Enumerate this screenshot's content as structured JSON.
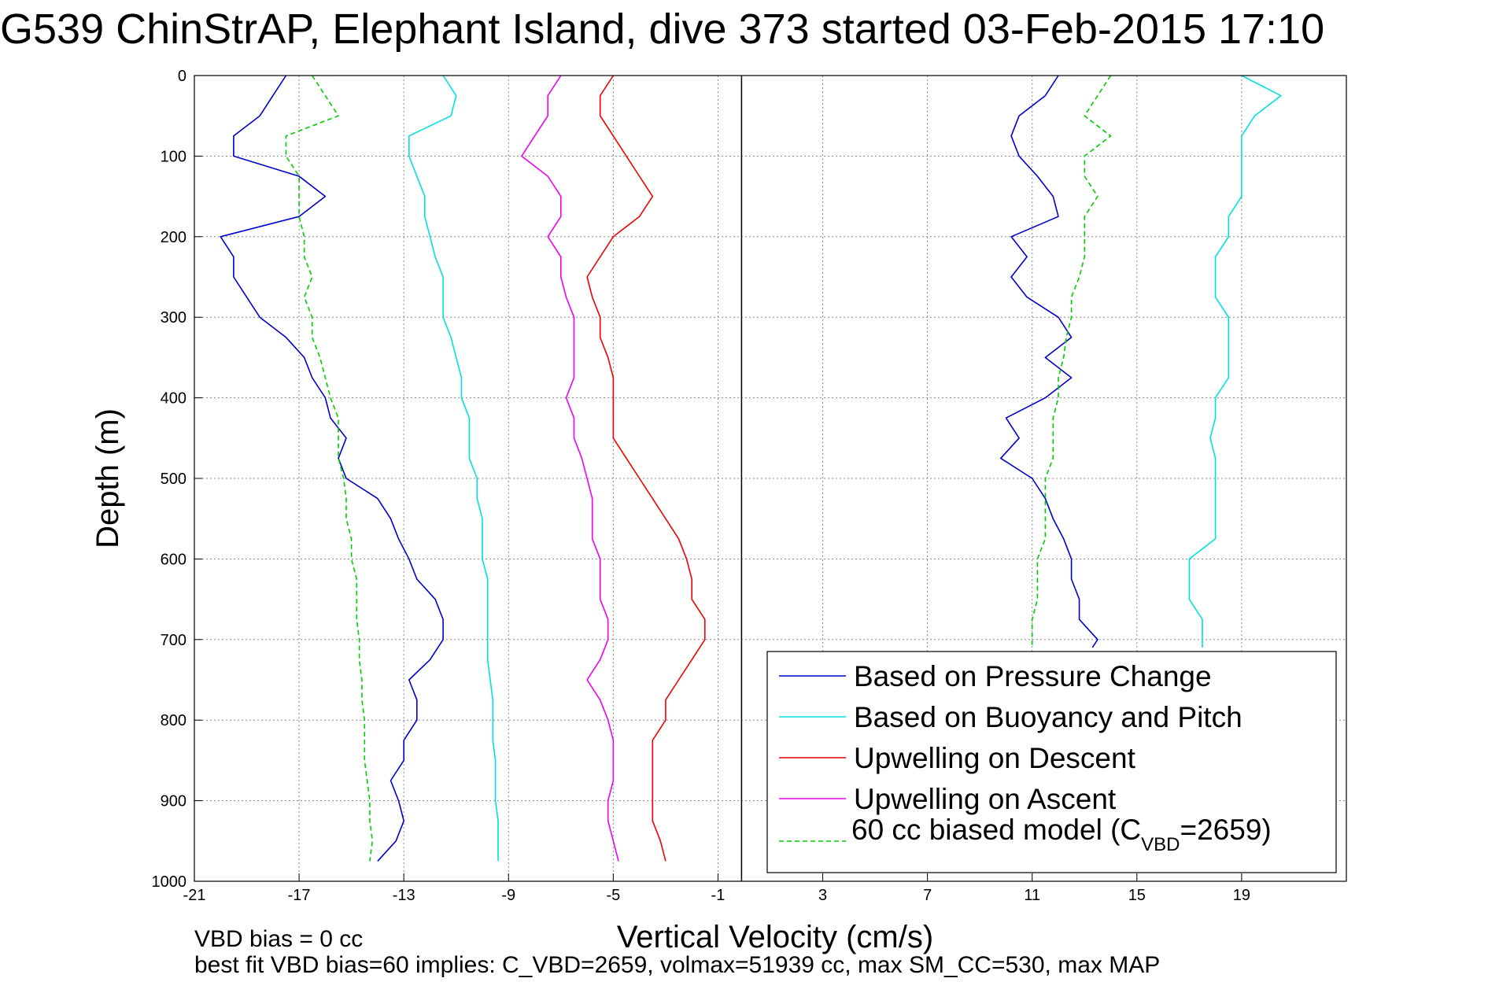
{
  "chart_data": {
    "type": "line",
    "title": "G539 ChinStrAP, Elephant Island, dive 373 started 03-Feb-2015 17:10",
    "xlabel": "Vertical Velocity (cm/s)",
    "ylabel": "Depth (m)",
    "xlim": [
      -21,
      23
    ],
    "ylim": [
      0,
      1000
    ],
    "y_reversed": true,
    "grid": true,
    "x_ticks": [
      -21,
      -17,
      -13,
      -9,
      -5,
      -1,
      3,
      7,
      11,
      15,
      19
    ],
    "y_ticks": [
      0,
      100,
      200,
      300,
      400,
      500,
      600,
      700,
      800,
      900,
      1000
    ],
    "divider_x": -0.1,
    "legend": {
      "placement": "bottom-right",
      "cvbd_prefix": "60 cc biased model (C",
      "cvbd_sub": "VBD",
      "cvbd_suffix": "=2659)"
    },
    "notes": {
      "vbd_bias": "VBD bias = 0 cc",
      "best_fit": "best fit VBD bias=60 implies: C_VBD=2659, volmax=51939 cc, max SM_CC=530, max MAP"
    },
    "series": [
      {
        "name": "Based on Pressure Change",
        "color": "#0000cc",
        "dash": "",
        "segments": [
          {
            "depth": [
              0,
              25,
              50,
              75,
              100,
              125,
              150,
              175,
              200,
              225,
              250,
              275,
              300,
              325,
              350,
              375,
              400,
              425,
              450,
              475,
              500,
              525,
              550,
              575,
              600,
              625,
              650,
              675,
              700,
              725,
              750,
              775,
              800,
              825,
              850,
              875,
              900,
              925,
              950,
              975
            ],
            "value": [
              -17.5,
              -18,
              -18.5,
              -19.5,
              -19.5,
              -17,
              -16,
              -17,
              -20,
              -19.5,
              -19.5,
              -19,
              -18.5,
              -17.5,
              -16.8,
              -16.5,
              -16,
              -15.8,
              -15.2,
              -15.5,
              -15.2,
              -14,
              -13.5,
              -13.2,
              -12.8,
              -12.5,
              -11.8,
              -11.5,
              -11.5,
              -12,
              -12.8,
              -12.5,
              -12.5,
              -13,
              -13,
              -13.5,
              -13.2,
              -13,
              -13.3,
              -14
            ]
          },
          {
            "depth": [
              0,
              25,
              50,
              75,
              100,
              125,
              150,
              175,
              200,
              225,
              250,
              275,
              300,
              325,
              350,
              375,
              400,
              425,
              450,
              475,
              500,
              525,
              550,
              575,
              600,
              625,
              650,
              675,
              700,
              710
            ],
            "value": [
              12,
              11.5,
              10.5,
              10.2,
              10.5,
              11.2,
              11.8,
              12,
              10.2,
              10.8,
              10.2,
              10.8,
              12,
              12.5,
              11.5,
              12.5,
              11.5,
              10,
              10.5,
              9.8,
              11,
              11.5,
              11.8,
              12.2,
              12.5,
              12.5,
              12.8,
              12.8,
              13.5,
              13.3
            ]
          }
        ]
      },
      {
        "name": "Based on Buoyancy and Pitch",
        "color": "#00e0e0",
        "dash": "",
        "segments": [
          {
            "depth": [
              0,
              25,
              50,
              75,
              100,
              125,
              150,
              175,
              200,
              225,
              250,
              275,
              300,
              325,
              350,
              375,
              400,
              425,
              450,
              475,
              500,
              525,
              550,
              575,
              600,
              625,
              650,
              675,
              700,
              725,
              750,
              775,
              800,
              825,
              850,
              875,
              900,
              925,
              950,
              975
            ],
            "value": [
              -11.5,
              -11,
              -11.2,
              -12.8,
              -12.8,
              -12.5,
              -12.2,
              -12.2,
              -12,
              -11.8,
              -11.5,
              -11.5,
              -11.5,
              -11.2,
              -11,
              -10.8,
              -10.8,
              -10.5,
              -10.5,
              -10.5,
              -10.2,
              -10.2,
              -10,
              -10,
              -10,
              -9.8,
              -9.8,
              -9.8,
              -9.8,
              -9.8,
              -9.7,
              -9.6,
              -9.6,
              -9.6,
              -9.5,
              -9.5,
              -9.5,
              -9.4,
              -9.4,
              -9.4
            ]
          },
          {
            "depth": [
              0,
              25,
              50,
              75,
              100,
              125,
              150,
              175,
              200,
              225,
              250,
              275,
              300,
              325,
              350,
              375,
              400,
              425,
              450,
              475,
              500,
              525,
              550,
              575,
              600,
              625,
              650,
              675,
              700,
              710
            ],
            "value": [
              19,
              20.5,
              19.5,
              19,
              19,
              19,
              19,
              18.5,
              18.5,
              18,
              18,
              18,
              18.5,
              18.5,
              18.5,
              18.5,
              18,
              18,
              17.8,
              18,
              18,
              18,
              18,
              18,
              17,
              17,
              17,
              17.5,
              17.5,
              17.5
            ]
          }
        ]
      },
      {
        "name": "Upwelling on Descent",
        "color": "#ee0000",
        "dash": "",
        "segments": [
          {
            "depth": [
              0,
              25,
              50,
              75,
              100,
              125,
              150,
              175,
              200,
              225,
              250,
              275,
              300,
              325,
              350,
              375,
              400,
              425,
              450,
              475,
              500,
              525,
              550,
              575,
              600,
              625,
              650,
              675,
              700,
              725,
              750,
              775,
              800,
              825,
              850,
              875,
              900,
              925,
              950,
              975
            ],
            "value": [
              -5,
              -5.5,
              -5.5,
              -5,
              -4.5,
              -4,
              -3.5,
              -4,
              -5,
              -5.5,
              -6,
              -5.8,
              -5.5,
              -5.5,
              -5.2,
              -5,
              -5,
              -5,
              -5,
              -4.5,
              -4,
              -3.5,
              -3,
              -2.5,
              -2.2,
              -2,
              -2,
              -1.5,
              -1.5,
              -2,
              -2.5,
              -3,
              -3,
              -3.5,
              -3.5,
              -3.5,
              -3.5,
              -3.5,
              -3.2,
              -3
            ]
          }
        ]
      },
      {
        "name": "Upwelling on Ascent",
        "color": "#ee00ee",
        "dash": "",
        "segments": [
          {
            "depth": [
              0,
              25,
              50,
              75,
              100,
              125,
              150,
              175,
              200,
              225,
              250,
              275,
              300,
              325,
              350,
              375,
              400,
              425,
              450,
              475,
              500,
              525,
              550,
              575,
              600,
              625,
              650,
              675,
              700,
              725,
              750,
              775,
              800,
              825,
              850,
              875,
              900,
              925,
              950,
              975
            ],
            "value": [
              -7,
              -7.5,
              -7.5,
              -8,
              -8.5,
              -7.5,
              -7,
              -7,
              -7.5,
              -7,
              -7,
              -6.8,
              -6.5,
              -6.5,
              -6.5,
              -6.5,
              -6.8,
              -6.5,
              -6.5,
              -6.2,
              -6,
              -5.8,
              -5.8,
              -5.8,
              -5.5,
              -5.5,
              -5.5,
              -5.2,
              -5.2,
              -5.5,
              -6,
              -5.5,
              -5.2,
              -5,
              -5,
              -5,
              -5.2,
              -5.2,
              -5,
              -4.8
            ]
          }
        ]
      },
      {
        "name": "60 cc biased model",
        "color": "#00cc00",
        "dash": "6,4",
        "segments": [
          {
            "depth": [
              0,
              25,
              50,
              75,
              100,
              125,
              150,
              175,
              200,
              225,
              250,
              275,
              300,
              325,
              350,
              375,
              400,
              425,
              450,
              475,
              500,
              525,
              550,
              575,
              600,
              625,
              650,
              675,
              700,
              725,
              750,
              775,
              800,
              825,
              850,
              875,
              900,
              925,
              950,
              975
            ],
            "value": [
              -16.5,
              -16,
              -15.5,
              -17.5,
              -17.5,
              -17,
              -17,
              -17,
              -16.8,
              -16.8,
              -16.5,
              -16.8,
              -16.5,
              -16.5,
              -16.2,
              -16,
              -15.8,
              -15.5,
              -15.5,
              -15.5,
              -15.3,
              -15.2,
              -15.2,
              -15,
              -15,
              -14.8,
              -14.8,
              -14.8,
              -14.7,
              -14.7,
              -14.6,
              -14.6,
              -14.5,
              -14.5,
              -14.5,
              -14.4,
              -14.3,
              -14.3,
              -14.2,
              -14.3
            ]
          },
          {
            "depth": [
              0,
              25,
              50,
              75,
              100,
              125,
              150,
              175,
              200,
              225,
              250,
              275,
              300,
              325,
              350,
              375,
              400,
              425,
              450,
              475,
              500,
              525,
              550,
              575,
              600,
              625,
              650,
              675,
              700,
              710
            ],
            "value": [
              14,
              13.5,
              13,
              14,
              13,
              13,
              13.5,
              13,
              13,
              13,
              12.8,
              12.5,
              12.5,
              12.3,
              12.2,
              12,
              12,
              11.8,
              11.8,
              11.8,
              11.5,
              11.5,
              11.5,
              11.5,
              11.2,
              11.2,
              11.2,
              11,
              11,
              11
            ]
          }
        ]
      }
    ]
  }
}
